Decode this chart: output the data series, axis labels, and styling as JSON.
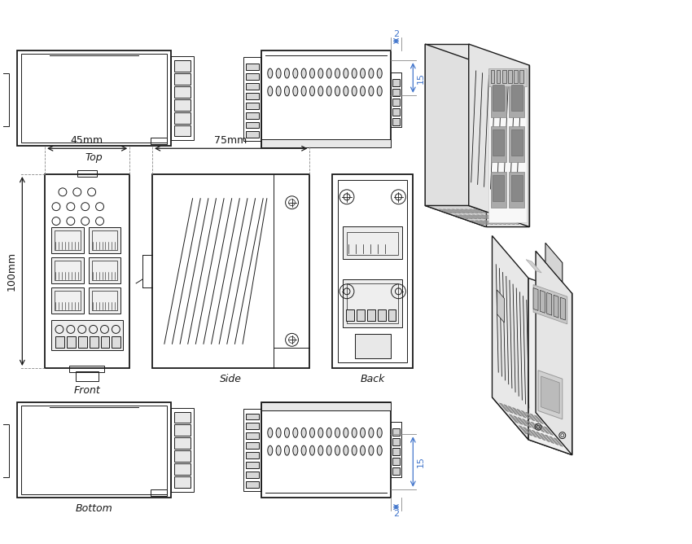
{
  "bg_color": "#ffffff",
  "line_color": "#1a1a1a",
  "blue_color": "#4477cc",
  "dim_45mm": "45mm",
  "dim_75mm": "75mm",
  "dim_100mm": "100mm"
}
